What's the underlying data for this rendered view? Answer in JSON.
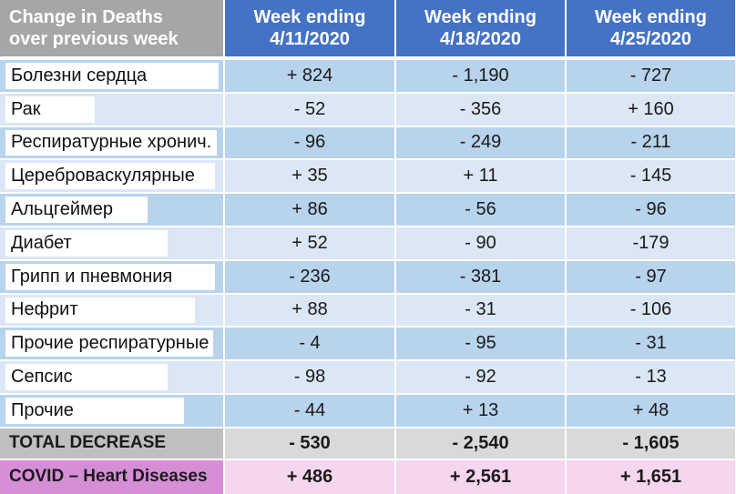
{
  "header": {
    "first_line1": "Change in Deaths",
    "first_line2": "over previous week",
    "col_prefix": "Week ending",
    "columns": [
      "4/11/2020",
      "4/18/2020",
      "4/25/2020"
    ]
  },
  "rows": [
    {
      "label": "Болезни сердца",
      "values": [
        "+ 824",
        "- 1,190",
        "- 727"
      ]
    },
    {
      "label": "Рак",
      "values": [
        "- 52",
        "- 356",
        "+ 160"
      ]
    },
    {
      "label": "Респиратурные хронич.",
      "values": [
        "- 96",
        "- 249",
        "- 211"
      ]
    },
    {
      "label": "Цереброваскулярные",
      "values": [
        "+ 35",
        "+  11",
        "- 145"
      ]
    },
    {
      "label": "Альцгеймер",
      "values": [
        "+ 86",
        "- 56",
        "- 96"
      ]
    },
    {
      "label": "Диабет",
      "values": [
        "+ 52",
        "- 90",
        "-179"
      ]
    },
    {
      "label": "Грипп и пневмония",
      "values": [
        "- 236",
        "- 381",
        "- 97"
      ]
    },
    {
      "label": "Нефрит",
      "values": [
        "+ 88",
        "- 31",
        "- 106"
      ]
    },
    {
      "label": "Прочие респиратурные",
      "values": [
        "- 4",
        "- 95",
        "- 31"
      ]
    },
    {
      "label": "Сепсис",
      "values": [
        "- 98",
        "- 92",
        "- 13"
      ]
    },
    {
      "label": "Прочие",
      "values": [
        "- 44",
        "+ 13",
        "+ 48"
      ]
    }
  ],
  "summary": [
    {
      "label": "TOTAL DECREASE",
      "values": [
        "- 530",
        "- 2,540",
        "- 1,605"
      ]
    },
    {
      "label": "COVID – Heart Diseases",
      "values": [
        "+ 486",
        "+ 2,561",
        "+ 1,651"
      ]
    }
  ],
  "colors": {
    "header_first": "#a6a6a6",
    "header_col": "#4472c4",
    "row_dark": "#b8d3ec",
    "row_light": "#dbe7f5",
    "label_bg": "#ffffff",
    "total_label_bg": "#bfbfbf",
    "total_bg": "#d9d9d9",
    "covid_label_bg": "#d68fd6",
    "covid_bg": "#f6d6ef"
  },
  "chart_data": {
    "type": "table",
    "columns": [
      "4/11/2020",
      "4/18/2020",
      "4/25/2020"
    ],
    "rows": [
      "Болезни сердца",
      "Рак",
      "Респиратурные хронич.",
      "Цереброваскулярные",
      "Альцгеймер",
      "Диабет",
      "Грипп и пневмония",
      "Нефрит",
      "Прочие респиратурные",
      "Сепсис",
      "Прочие",
      "TOTAL DECREASE",
      "COVID – Heart Diseases"
    ],
    "values": [
      [
        824,
        -1190,
        -727
      ],
      [
        -52,
        -356,
        160
      ],
      [
        -96,
        -249,
        -211
      ],
      [
        35,
        11,
        -145
      ],
      [
        86,
        -56,
        -96
      ],
      [
        52,
        -90,
        -179
      ],
      [
        -236,
        -381,
        -97
      ],
      [
        88,
        -31,
        -106
      ],
      [
        -4,
        -95,
        -31
      ],
      [
        -98,
        -92,
        -13
      ],
      [
        -44,
        13,
        48
      ],
      [
        -530,
        -2540,
        -1605
      ],
      [
        486,
        2561,
        1651
      ]
    ]
  }
}
